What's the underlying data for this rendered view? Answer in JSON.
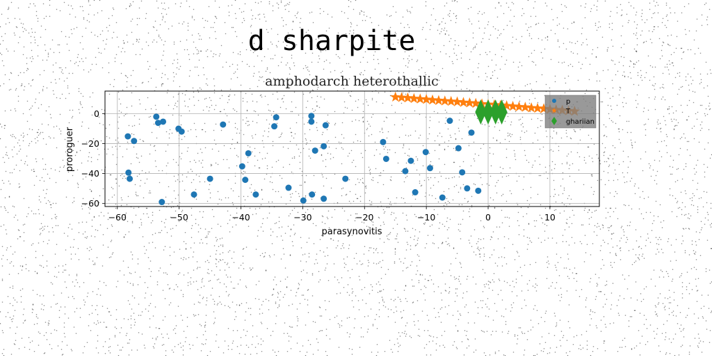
{
  "figure": {
    "suptitle": "d sharpite"
  },
  "chart_data": {
    "type": "scatter",
    "title": "amphodarch heterothallic",
    "xlabel": "parasynovitis",
    "ylabel": "proroguer",
    "xlim": [
      -62,
      18
    ],
    "ylim": [
      -62,
      15
    ],
    "xticks": [
      -60,
      -50,
      -40,
      -30,
      -20,
      -10,
      0,
      10
    ],
    "yticks": [
      -60,
      -40,
      -20,
      0
    ],
    "grid": true,
    "legend_position": "upper right",
    "series": [
      {
        "name": "p",
        "marker": "circle",
        "color": "#1f77b4",
        "x": [
          -58.3,
          -57.3,
          -58.2,
          -58.0,
          -53.7,
          -53.4,
          -52.6,
          -50.1,
          -49.6,
          -52.8,
          -47.6,
          -45.0,
          -42.9,
          -39.8,
          -39.3,
          -38.8,
          -37.6,
          -34.6,
          -34.3,
          -32.3,
          -29.9,
          -28.6,
          -28.6,
          -28.5,
          -28.0,
          -26.6,
          -26.3,
          -26.6,
          -23.1,
          -17.0,
          -16.5,
          -13.4,
          -12.5,
          -11.8,
          -10.1,
          -9.4,
          -7.4,
          -6.2,
          -4.8,
          -4.2,
          -3.4,
          -2.7,
          -1.6
        ],
        "y": [
          -15.2,
          -18.3,
          -39.4,
          -43.5,
          -2.1,
          -6.2,
          -5.4,
          -10.1,
          -12.0,
          -59.0,
          -54.0,
          -43.5,
          -7.3,
          -35.2,
          -44.2,
          -26.5,
          -54.0,
          -8.5,
          -2.5,
          -49.5,
          -58.0,
          -1.6,
          -5.4,
          -54.0,
          -24.7,
          -21.8,
          -7.8,
          -56.8,
          -43.5,
          -19.0,
          -30.2,
          -38.4,
          -31.5,
          -52.5,
          -25.7,
          -36.4,
          -56.0,
          -4.8,
          -23.1,
          -39.2,
          -49.9,
          -12.7,
          -51.5
        ]
      },
      {
        "name": "T",
        "marker": "star",
        "color": "#ff7f0e",
        "x": [
          -15,
          -14,
          -13,
          -12,
          -11,
          -10,
          -9,
          -8,
          -7,
          -6,
          -5,
          -4,
          -3,
          -2,
          -1,
          0,
          1,
          2,
          3,
          4,
          5,
          6,
          7,
          8,
          9,
          10,
          11,
          12,
          13,
          14
        ],
        "y": [
          11.0,
          10.7,
          10.4,
          10.0,
          9.7,
          9.4,
          9.0,
          8.7,
          8.4,
          8.1,
          7.8,
          7.4,
          7.1,
          6.8,
          6.4,
          6.1,
          5.8,
          5.5,
          5.2,
          4.8,
          4.5,
          4.2,
          3.8,
          3.5,
          3.2,
          2.8,
          2.5,
          2.2,
          1.8,
          1.5
        ]
      },
      {
        "name": "ghariian",
        "marker": "thin_diamond",
        "color": "#2ca02c",
        "x": [
          -1.2,
          0.0,
          1.2,
          2.2
        ],
        "y": [
          1.0,
          1.0,
          1.0,
          1.0
        ]
      }
    ]
  }
}
